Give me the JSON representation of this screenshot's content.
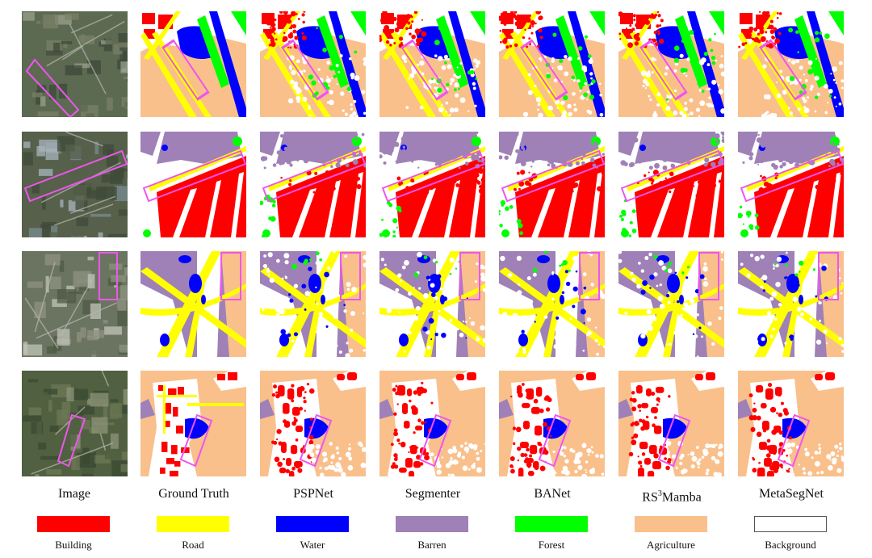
{
  "columns": [
    {
      "label": "Image"
    },
    {
      "label": "Ground Truth"
    },
    {
      "label": "PSPNet"
    },
    {
      "label": "Segmenter"
    },
    {
      "label": "BANet"
    },
    {
      "label": "RS",
      "label_sup": "3",
      "label_suffix": "Mamba"
    },
    {
      "label": "MetaSegNet"
    }
  ],
  "legend": [
    {
      "label": "Building",
      "color": "#ff0000"
    },
    {
      "label": "Road",
      "color": "#ffff00"
    },
    {
      "label": "Water",
      "color": "#0000ff"
    },
    {
      "label": "Barren",
      "color": "#9f81b7"
    },
    {
      "label": "Forest",
      "color": "#00ff00"
    },
    {
      "label": "Agriculture",
      "color": "#f9c08c"
    },
    {
      "label": "Background",
      "color": "#ffffff"
    }
  ],
  "highlight_color": "#ee55ee"
}
